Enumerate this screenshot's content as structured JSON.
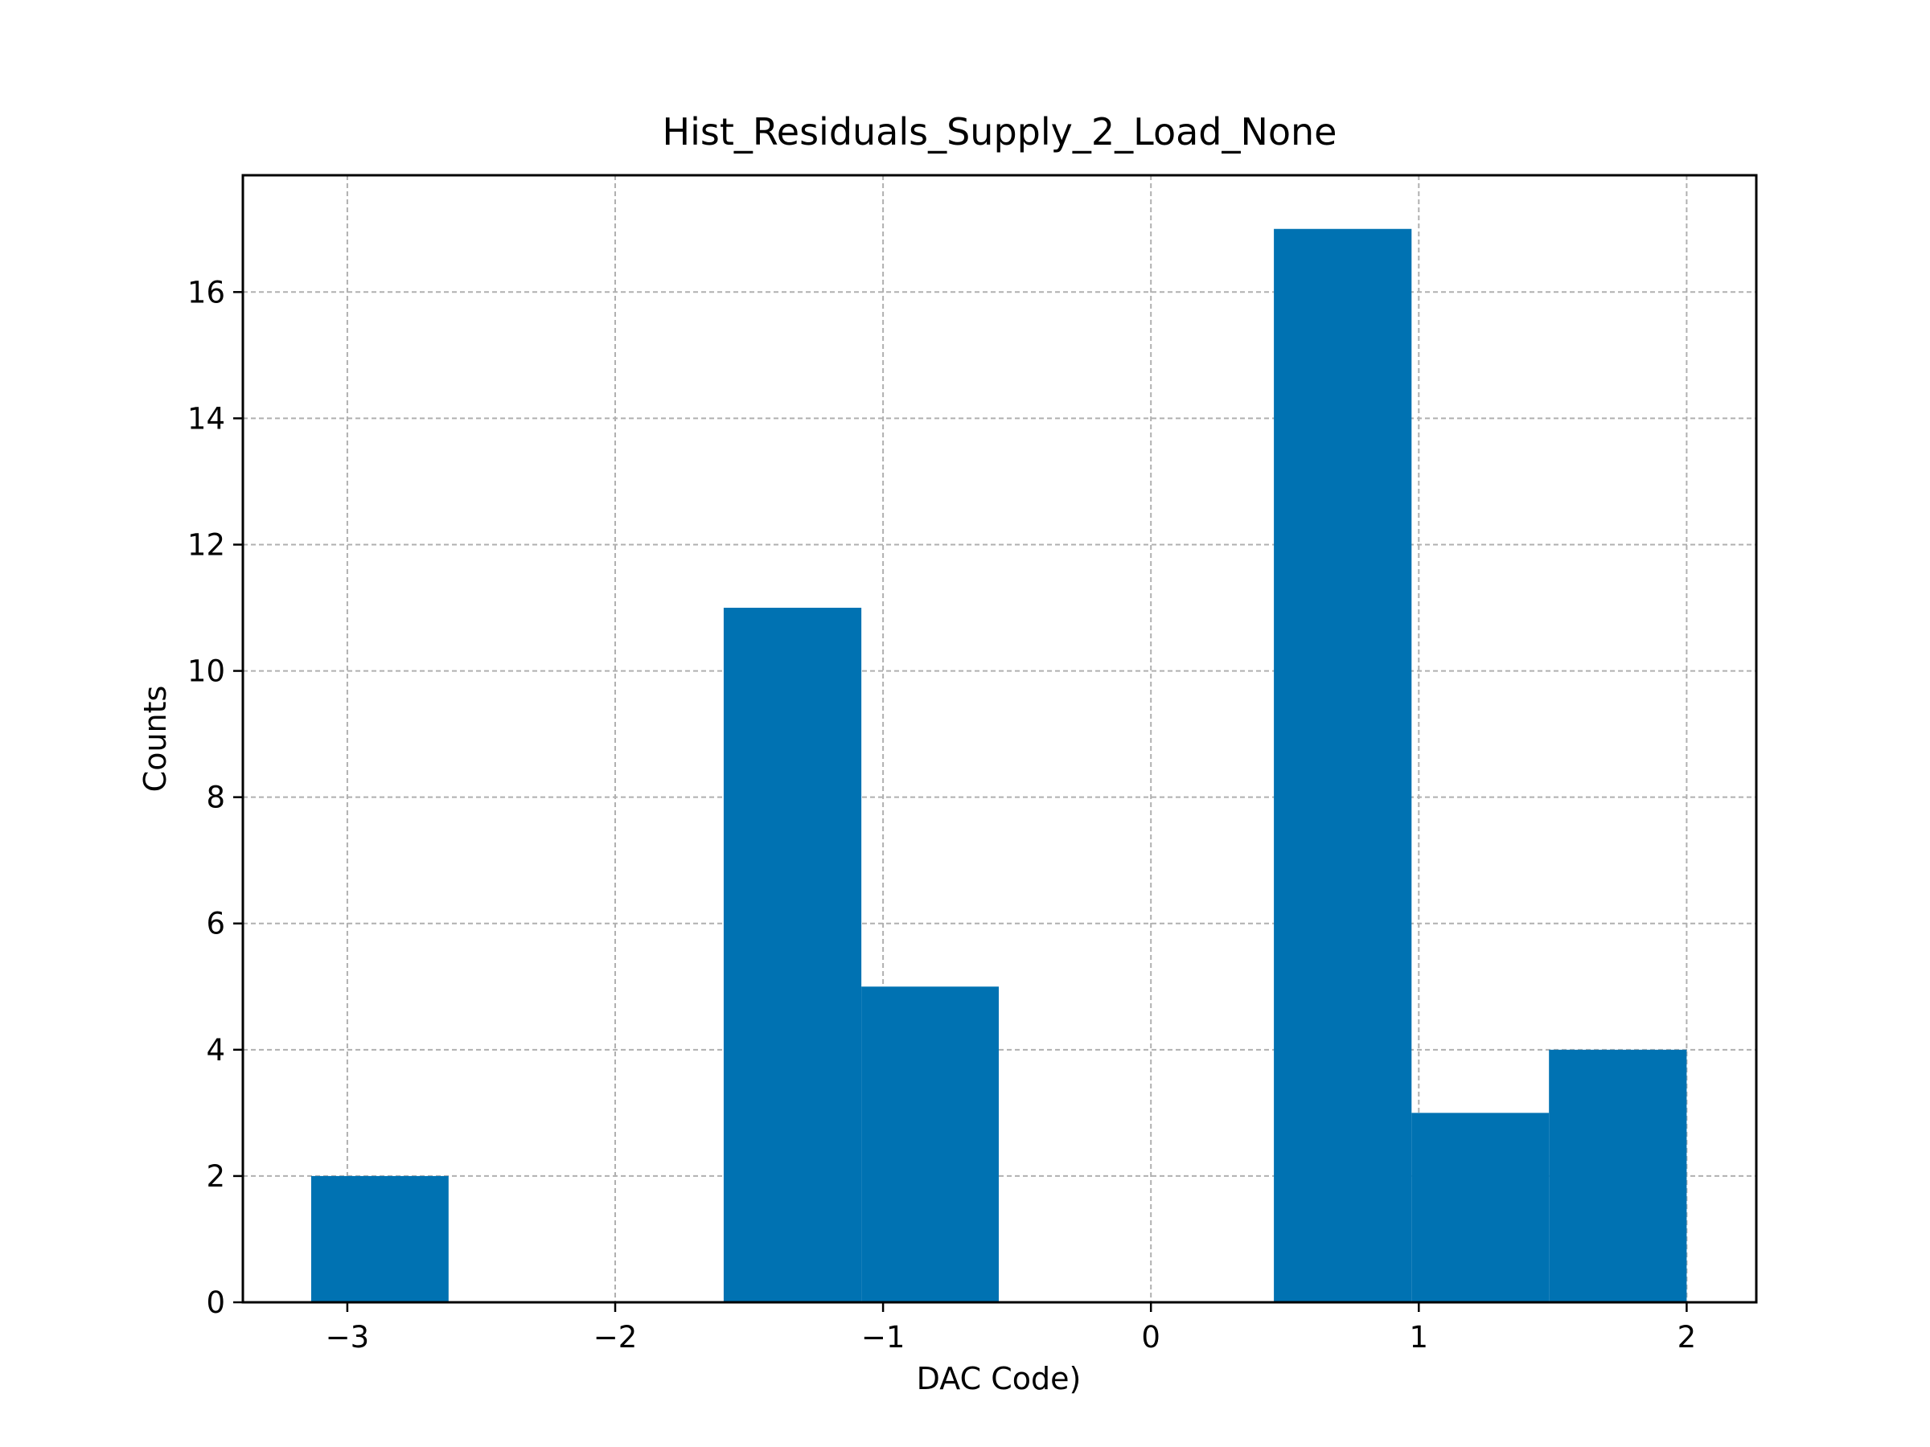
{
  "chart_data": {
    "type": "bar",
    "title": "Hist_Residuals_Supply_2_Load_None",
    "xlabel": "DAC Code)",
    "ylabel": "Counts",
    "xlim": [
      -3.39,
      2.26
    ],
    "ylim": [
      0,
      17.85
    ],
    "xticks": [
      {
        "value": -3,
        "label": "−3"
      },
      {
        "value": -2,
        "label": "−2"
      },
      {
        "value": -1,
        "label": "−1"
      },
      {
        "value": 0,
        "label": "0"
      },
      {
        "value": 1,
        "label": "1"
      },
      {
        "value": 2,
        "label": "2"
      }
    ],
    "yticks": [
      {
        "value": 0,
        "label": "0"
      },
      {
        "value": 2,
        "label": "2"
      },
      {
        "value": 4,
        "label": "4"
      },
      {
        "value": 6,
        "label": "6"
      },
      {
        "value": 8,
        "label": "8"
      },
      {
        "value": 10,
        "label": "10"
      },
      {
        "value": 12,
        "label": "12"
      },
      {
        "value": 14,
        "label": "14"
      },
      {
        "value": 16,
        "label": "16"
      }
    ],
    "bins": [
      {
        "x0": -3.135,
        "x1": -2.622,
        "count": 2
      },
      {
        "x0": -2.622,
        "x1": -2.108,
        "count": 0
      },
      {
        "x0": -2.108,
        "x1": -1.595,
        "count": 0
      },
      {
        "x0": -1.595,
        "x1": -1.081,
        "count": 11
      },
      {
        "x0": -1.081,
        "x1": -0.568,
        "count": 5
      },
      {
        "x0": -0.568,
        "x1": -0.054,
        "count": 0
      },
      {
        "x0": -0.054,
        "x1": 0.459,
        "count": 0
      },
      {
        "x0": 0.459,
        "x1": 0.973,
        "count": 17
      },
      {
        "x0": 0.973,
        "x1": 1.486,
        "count": 3
      },
      {
        "x0": 1.486,
        "x1": 2.0,
        "count": 4
      }
    ],
    "bar_color": "#0072b2",
    "grid": true
  }
}
